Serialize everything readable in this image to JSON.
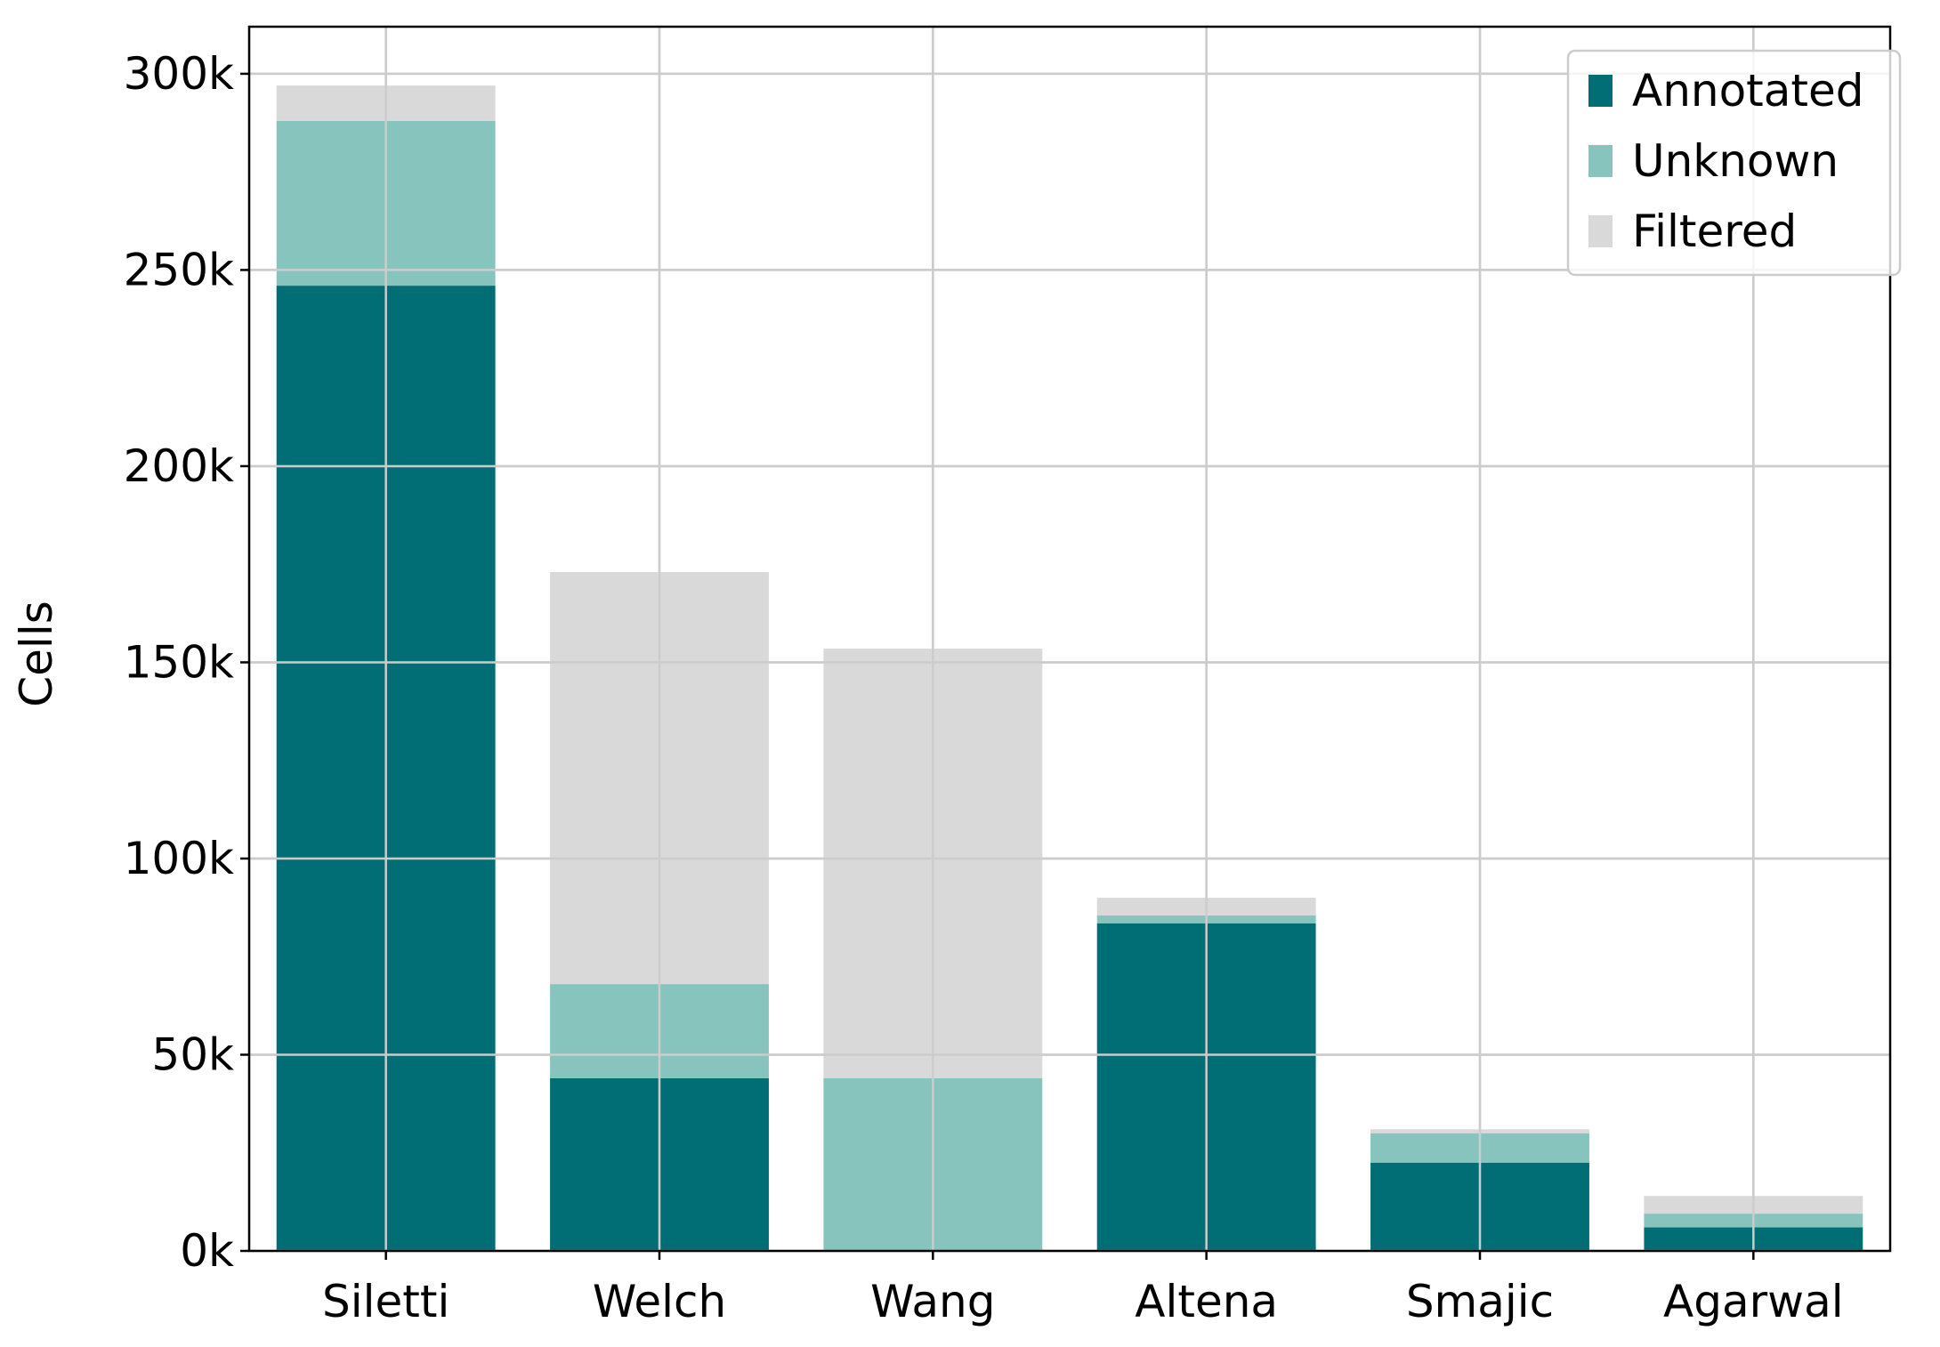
{
  "chart_data": {
    "type": "bar",
    "stacked": true,
    "categories": [
      "Siletti",
      "Welch",
      "Wang",
      "Altena",
      "Smajic",
      "Agarwal"
    ],
    "series": [
      {
        "name": "Annotated",
        "color": "#016e75",
        "values": [
          246000,
          44000,
          0,
          83500,
          22500,
          6000
        ]
      },
      {
        "name": "Unknown",
        "color": "#86c4bd",
        "values": [
          42000,
          24000,
          44000,
          2000,
          7500,
          3500
        ]
      },
      {
        "name": "Filtered",
        "color": "#d9d9d9",
        "values": [
          9000,
          105000,
          109500,
          4500,
          1000,
          4500
        ]
      }
    ],
    "ylabel": "Cells",
    "xlabel": "",
    "title": "",
    "ylim": [
      0,
      312000
    ],
    "yticks": [
      0,
      50000,
      100000,
      150000,
      200000,
      250000,
      300000
    ],
    "ytick_labels": [
      "0k",
      "50k",
      "100k",
      "150k",
      "200k",
      "250k",
      "300k"
    ],
    "grid": true,
    "legend_position": "top-right"
  }
}
